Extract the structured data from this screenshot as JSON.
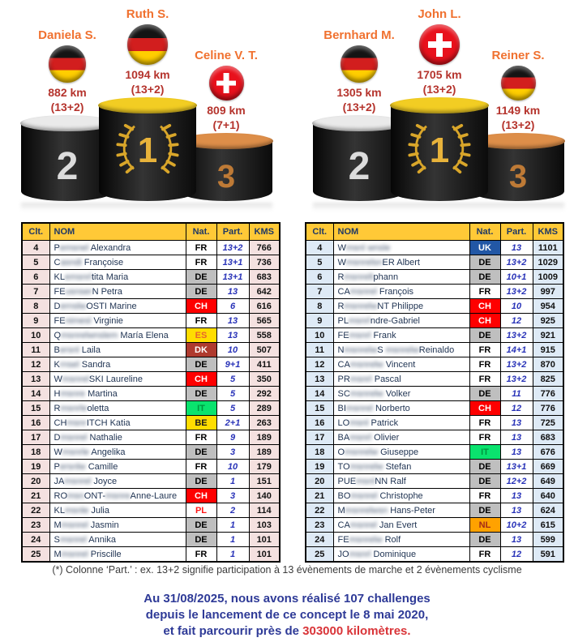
{
  "theme": {
    "header_bg": "#FFC937",
    "header_fg": "#1F3864",
    "part_fg": "#2933B8",
    "pod_name": "#F0712F",
    "pod_km": "#B5342D",
    "summary_blue": "#2E3A97",
    "summary_red": "#D93438"
  },
  "podiums": [
    {
      "id": "women",
      "entries": [
        {
          "place": 2,
          "name": "Daniela S.",
          "flag": "de",
          "km": "882 km",
          "part": "(13+2)"
        },
        {
          "place": 1,
          "name": "Ruth S.",
          "flag": "de",
          "km": "1094 km",
          "part": "(13+2)"
        },
        {
          "place": 3,
          "name": "Celine V. T.",
          "flag": "ch",
          "km": "809 km",
          "part": "(7+1)"
        }
      ]
    },
    {
      "id": "men",
      "entries": [
        {
          "place": 2,
          "name": "Bernhard M.",
          "flag": "de",
          "km": "1305 km",
          "part": "(13+2)"
        },
        {
          "place": 1,
          "name": "John L.",
          "flag": "ch",
          "km": "1705 km",
          "part": "(13+2)"
        },
        {
          "place": 3,
          "name": "Reiner S.",
          "flag": "de",
          "km": "1149 km",
          "part": "(13+2)"
        }
      ]
    }
  ],
  "nat_colors": {
    "FR": {
      "bg": "#FFFFFF",
      "fg": "#000000"
    },
    "DE": {
      "bg": "#BFBFBF",
      "fg": "#000000"
    },
    "CH": {
      "bg": "#FE0000",
      "fg": "#FFFFFF"
    },
    "ES": {
      "bg": "#FFDD00",
      "fg": "#E8642C"
    },
    "DK": {
      "bg": "#AF3A2E",
      "fg": "#FFFFFF"
    },
    "IT": {
      "bg": "#0AE36E",
      "fg": "#00963F"
    },
    "BE": {
      "bg": "#FFDD00",
      "fg": "#1A1A1A"
    },
    "PL": {
      "bg": "#FFFFFF",
      "fg": "#FF1515"
    },
    "UK": {
      "bg": "#2257A5",
      "fg": "#FFFFFF"
    },
    "NL": {
      "bg": "#FFA200",
      "fg": "#A42A18"
    }
  },
  "tables": {
    "headers": [
      "Clt.",
      "NOM",
      "Nat.",
      "Part.",
      "KMS"
    ],
    "left": {
      "accent": "#F4E1E0",
      "rows": [
        {
          "clt": "4",
          "name": [
            [
              "P",
              0
            ],
            [
              "emsnel",
              1
            ],
            [
              " Alexandra",
              0
            ]
          ],
          "nat": "FR",
          "part": "13+2",
          "kms": "766"
        },
        {
          "clt": "5",
          "name": [
            [
              "C",
              0
            ],
            [
              "asndi",
              1
            ],
            [
              " Françoise",
              0
            ]
          ],
          "nat": "FR",
          "part": "13+1",
          "kms": "736"
        },
        {
          "clt": "6",
          "name": [
            [
              "KL",
              0
            ],
            [
              "emsnrl",
              1
            ],
            [
              "tita Maria",
              0
            ]
          ],
          "nat": "DE",
          "part": "13+1",
          "kms": "683"
        },
        {
          "clt": "7",
          "name": [
            [
              "FE",
              0
            ],
            [
              "usnser",
              1
            ],
            [
              "N Petra",
              0
            ]
          ],
          "nat": "DE",
          "part": "13",
          "kms": "642"
        },
        {
          "clt": "8",
          "name": [
            [
              "D",
              0
            ],
            [
              "ernslw",
              1
            ],
            [
              "OSTI Marine",
              0
            ]
          ],
          "nat": "CH",
          "part": "6",
          "kms": "616"
        },
        {
          "clt": "9",
          "name": [
            [
              "FE",
              0
            ],
            [
              "nimesl",
              1
            ],
            [
              " Virginie",
              0
            ]
          ],
          "nat": "FR",
          "part": "13",
          "kms": "565"
        },
        {
          "clt": "10",
          "name": [
            [
              "Q",
              0
            ],
            [
              "msnrelwnslem",
              1
            ],
            [
              " María Elena",
              0
            ]
          ],
          "nat": "ES",
          "part": "13",
          "kms": "558"
        },
        {
          "clt": "11",
          "name": [
            [
              "B",
              0
            ],
            [
              "ersnl",
              1
            ],
            [
              " Laila",
              0
            ]
          ],
          "nat": "DK",
          "part": "10",
          "kms": "507"
        },
        {
          "clt": "12",
          "name": [
            [
              "K",
              0
            ],
            [
              "rnsel",
              1
            ],
            [
              " Sandra",
              0
            ]
          ],
          "nat": "DE",
          "part": "9+1",
          "kms": "411"
        },
        {
          "clt": "13",
          "name": [
            [
              "W",
              0
            ],
            [
              "msnrel",
              1
            ],
            [
              "SKI Laureline",
              0
            ]
          ],
          "nat": "CH",
          "part": "5",
          "kms": "350"
        },
        {
          "clt": "14",
          "name": [
            [
              "H",
              0
            ],
            [
              "msnre",
              1
            ],
            [
              " Martina",
              0
            ]
          ],
          "nat": "DE",
          "part": "5",
          "kms": "292"
        },
        {
          "clt": "15",
          "name": [
            [
              "R",
              0
            ],
            [
              "msnrle",
              1
            ],
            [
              "oletta",
              0
            ]
          ],
          "nat": "IT",
          "part": "5",
          "kms": "289"
        },
        {
          "clt": "16",
          "name": [
            [
              "CH",
              0
            ],
            [
              "msnr",
              1
            ],
            [
              "ITCH Katia",
              0
            ]
          ],
          "nat": "BE",
          "part": "2+1",
          "kms": "263"
        },
        {
          "clt": "17",
          "name": [
            [
              "D",
              0
            ],
            [
              "msnrel",
              1
            ],
            [
              " Nathalie",
              0
            ]
          ],
          "nat": "FR",
          "part": "9",
          "kms": "189"
        },
        {
          "clt": "18",
          "name": [
            [
              "W",
              0
            ],
            [
              "msnrle",
              1
            ],
            [
              " Angelika",
              0
            ]
          ],
          "nat": "DE",
          "part": "3",
          "kms": "189"
        },
        {
          "clt": "19",
          "name": [
            [
              "P",
              0
            ],
            [
              "ersnlw",
              1
            ],
            [
              " Camille",
              0
            ]
          ],
          "nat": "FR",
          "part": "10",
          "kms": "179"
        },
        {
          "clt": "20",
          "name": [
            [
              "JA",
              0
            ],
            [
              "msnrel",
              1
            ],
            [
              " Joyce",
              0
            ]
          ],
          "nat": "DE",
          "part": "1",
          "kms": "151"
        },
        {
          "clt": "21",
          "name": [
            [
              "RO",
              0
            ],
            [
              "msn",
              1
            ],
            [
              "ONT-",
              0
            ],
            [
              "msnre",
              1
            ],
            [
              "Anne-Laure",
              0
            ]
          ],
          "nat": "CH",
          "part": "3",
          "kms": "140"
        },
        {
          "clt": "22",
          "name": [
            [
              "KL",
              0
            ],
            [
              "msnle",
              1
            ],
            [
              " Julia",
              0
            ]
          ],
          "nat": "PL",
          "part": "2",
          "kms": "114"
        },
        {
          "clt": "23",
          "name": [
            [
              "M",
              0
            ],
            [
              "msnrel",
              1
            ],
            [
              " Jasmin",
              0
            ]
          ],
          "nat": "DE",
          "part": "1",
          "kms": "103"
        },
        {
          "clt": "24",
          "name": [
            [
              "S",
              0
            ],
            [
              "msnrel",
              1
            ],
            [
              " Annika",
              0
            ]
          ],
          "nat": "DE",
          "part": "1",
          "kms": "101"
        },
        {
          "clt": "25",
          "name": [
            [
              "M",
              0
            ],
            [
              "msnrel",
              1
            ],
            [
              " Priscille",
              0
            ]
          ],
          "nat": "FR",
          "part": "1",
          "kms": "101"
        }
      ]
    },
    "right": {
      "accent": "#DEEAF6",
      "rows": [
        {
          "clt": "4",
          "name": [
            [
              "W",
              0
            ],
            [
              "msnl",
              1
            ],
            [
              " ",
              0
            ],
            [
              "wnsle",
              1
            ]
          ],
          "nat": "UK",
          "part": "13",
          "kms": "1101"
        },
        {
          "clt": "5",
          "name": [
            [
              "W",
              0
            ],
            [
              "msnrelsn",
              1
            ],
            [
              "ER Albert",
              0
            ]
          ],
          "nat": "DE",
          "part": "13+2",
          "kms": "1029"
        },
        {
          "clt": "6",
          "name": [
            [
              "R",
              0
            ],
            [
              "msnrelt",
              1
            ],
            [
              "phann",
              0
            ]
          ],
          "nat": "DE",
          "part": "10+1",
          "kms": "1009"
        },
        {
          "clt": "7",
          "name": [
            [
              "CA",
              0
            ],
            [
              "msnrel",
              1
            ],
            [
              " François",
              0
            ]
          ],
          "nat": "FR",
          "part": "13+2",
          "kms": "997"
        },
        {
          "clt": "8",
          "name": [
            [
              "R",
              0
            ],
            [
              "msnrelw",
              1
            ],
            [
              "NT Philippe",
              0
            ]
          ],
          "nat": "CH",
          "part": "10",
          "kms": "954"
        },
        {
          "clt": "9",
          "name": [
            [
              "PL",
              0
            ],
            [
              "msnrl",
              1
            ],
            [
              "ndre-Gabriel",
              0
            ]
          ],
          "nat": "CH",
          "part": "12",
          "kms": "925"
        },
        {
          "clt": "10",
          "name": [
            [
              "FE",
              0
            ],
            [
              "msnrl",
              1
            ],
            [
              " Frank",
              0
            ]
          ],
          "nat": "DE",
          "part": "13+2",
          "kms": "921"
        },
        {
          "clt": "11",
          "name": [
            [
              "N",
              0
            ],
            [
              "msnrelw",
              1
            ],
            [
              "S ",
              0
            ],
            [
              "msnrelw",
              1
            ],
            [
              "Reinaldo",
              0
            ]
          ],
          "nat": "FR",
          "part": "14+1",
          "kms": "915"
        },
        {
          "clt": "12",
          "name": [
            [
              "CA",
              0
            ],
            [
              "msnrelw",
              1
            ],
            [
              " Vincent",
              0
            ]
          ],
          "nat": "FR",
          "part": "13+2",
          "kms": "870"
        },
        {
          "clt": "13",
          "name": [
            [
              "PR",
              0
            ],
            [
              "msnrl",
              1
            ],
            [
              " Pascal",
              0
            ]
          ],
          "nat": "FR",
          "part": "13+2",
          "kms": "825"
        },
        {
          "clt": "14",
          "name": [
            [
              "SC",
              0
            ],
            [
              "msnrelw",
              1
            ],
            [
              " Volker",
              0
            ]
          ],
          "nat": "DE",
          "part": "11",
          "kms": "776"
        },
        {
          "clt": "15",
          "name": [
            [
              "BI",
              0
            ],
            [
              "msnrel",
              1
            ],
            [
              " Norberto",
              0
            ]
          ],
          "nat": "CH",
          "part": "12",
          "kms": "776"
        },
        {
          "clt": "16",
          "name": [
            [
              "LO",
              0
            ],
            [
              "msnl",
              1
            ],
            [
              " Patrick",
              0
            ]
          ],
          "nat": "FR",
          "part": "13",
          "kms": "725"
        },
        {
          "clt": "17",
          "name": [
            [
              "BA",
              0
            ],
            [
              "msnrl",
              1
            ],
            [
              " Olivier",
              0
            ]
          ],
          "nat": "FR",
          "part": "13",
          "kms": "683"
        },
        {
          "clt": "18",
          "name": [
            [
              "O",
              0
            ],
            [
              "msnrelw",
              1
            ],
            [
              " Giuseppe",
              0
            ]
          ],
          "nat": "IT",
          "part": "13",
          "kms": "676"
        },
        {
          "clt": "19",
          "name": [
            [
              "TO",
              0
            ],
            [
              "msnrelw",
              1
            ],
            [
              " Stefan",
              0
            ]
          ],
          "nat": "DE",
          "part": "13+1",
          "kms": "669"
        },
        {
          "clt": "20",
          "name": [
            [
              "PUE",
              0
            ],
            [
              "msnl",
              1
            ],
            [
              "NN Ralf",
              0
            ]
          ],
          "nat": "DE",
          "part": "12+2",
          "kms": "649"
        },
        {
          "clt": "21",
          "name": [
            [
              "BO",
              0
            ],
            [
              "msnrel",
              1
            ],
            [
              " Christophe",
              0
            ]
          ],
          "nat": "FR",
          "part": "13",
          "kms": "640"
        },
        {
          "clt": "22",
          "name": [
            [
              "M",
              0
            ],
            [
              "msnrelwsn",
              1
            ],
            [
              " Hans-Peter",
              0
            ]
          ],
          "nat": "DE",
          "part": "13",
          "kms": "624"
        },
        {
          "clt": "23",
          "name": [
            [
              "CA",
              0
            ],
            [
              "msnrel",
              1
            ],
            [
              " Jan Evert",
              0
            ]
          ],
          "nat": "NL",
          "part": "10+2",
          "kms": "615"
        },
        {
          "clt": "24",
          "name": [
            [
              "FE",
              0
            ],
            [
              "msnrelw",
              1
            ],
            [
              " Rolf",
              0
            ]
          ],
          "nat": "DE",
          "part": "13",
          "kms": "599"
        },
        {
          "clt": "25",
          "name": [
            [
              "JO",
              0
            ],
            [
              "msnrl",
              1
            ],
            [
              " Dominique",
              0
            ]
          ],
          "nat": "FR",
          "part": "12",
          "kms": "591"
        }
      ]
    }
  },
  "footnote": "(*)   Colonne ‘Part.’ : ex. 13+2 signifie participation à 13 évènements de marche et 2 évènements cyclisme",
  "summary": {
    "line1": "Au 31/08/2025, nous avons réalisé 107 challenges",
    "line2": "depuis le lancement de ce concept le 8 mai 2020,",
    "line3_prefix": "et fait parcourir près de ",
    "line3_highlight": "303000 kilomètres."
  }
}
